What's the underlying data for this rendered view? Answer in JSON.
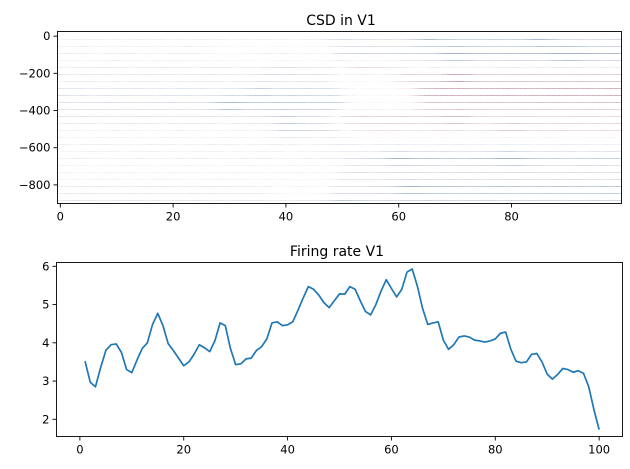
{
  "chart_data": [
    {
      "type": "heatmap",
      "title": "CSD in V1",
      "xlabel": "",
      "ylabel": "",
      "xlim": [
        -0.5,
        99.5
      ],
      "ylim": [
        -900,
        25
      ],
      "xticks": [
        0,
        20,
        40,
        60,
        80
      ],
      "yticks": [
        0,
        -200,
        -400,
        -600,
        -800
      ],
      "colormap": "RdBu_r",
      "colors": {
        "neg": "#08306b",
        "mid": "#f7f7f7",
        "pos": "#67001f"
      },
      "rows": 25,
      "cols": 100,
      "depth_step": -37.5,
      "bands": [
        {
          "depth": 0,
          "segments": [
            [
              0,
              50,
              -0.15
            ],
            [
              50,
              65,
              -0.3
            ],
            [
              65,
              85,
              -0.55
            ],
            [
              85,
              100,
              -0.4
            ]
          ]
        },
        {
          "depth": -75,
          "segments": [
            [
              0,
              30,
              -0.15
            ],
            [
              30,
              48,
              0.15
            ],
            [
              50,
              70,
              -0.55
            ],
            [
              70,
              90,
              -0.75
            ],
            [
              90,
              100,
              -0.85
            ]
          ]
        },
        {
          "depth": -150,
          "segments": [
            [
              0,
              40,
              -0.15
            ],
            [
              40,
              48,
              -0.2
            ],
            [
              52,
              62,
              0.35
            ],
            [
              62,
              100,
              -0.3
            ]
          ]
        },
        {
          "depth": -200,
          "segments": [
            [
              0,
              35,
              -0.2
            ],
            [
              38,
              46,
              -0.3
            ],
            [
              62,
              70,
              0.5
            ],
            [
              70,
              100,
              0.7
            ]
          ]
        },
        {
          "depth": -280,
          "segments": [
            [
              0,
              35,
              -0.3
            ],
            [
              36,
              48,
              -0.45
            ],
            [
              65,
              100,
              0.85
            ]
          ]
        },
        {
          "depth": -350,
          "segments": [
            [
              0,
              30,
              -0.35
            ],
            [
              30,
              48,
              -0.65
            ],
            [
              66,
              100,
              0.55
            ]
          ]
        },
        {
          "depth": -420,
          "segments": [
            [
              0,
              40,
              -0.25
            ],
            [
              40,
              48,
              -0.35
            ],
            [
              50,
              70,
              0.45
            ],
            [
              70,
              100,
              0.3
            ]
          ]
        },
        {
          "depth": -480,
          "segments": [
            [
              0,
              40,
              -0.1
            ],
            [
              40,
              48,
              -0.45
            ],
            [
              52,
              80,
              0.25
            ],
            [
              80,
              100,
              0.35
            ]
          ]
        },
        {
          "depth": -560,
          "segments": [
            [
              0,
              50,
              -0.15
            ],
            [
              52,
              100,
              -0.15
            ]
          ]
        },
        {
          "depth": -640,
          "segments": [
            [
              0,
              48,
              -0.15
            ],
            [
              52,
              60,
              -0.4
            ],
            [
              60,
              80,
              -0.7
            ],
            [
              80,
              100,
              -0.6
            ]
          ]
        },
        {
          "depth": -720,
          "segments": [
            [
              0,
              48,
              -0.1
            ],
            [
              52,
              100,
              -0.35
            ]
          ]
        },
        {
          "depth": -800,
          "segments": [
            [
              0,
              36,
              -0.25
            ],
            [
              36,
              46,
              0.1
            ],
            [
              50,
              62,
              -0.4
            ],
            [
              62,
              100,
              -0.75
            ]
          ]
        },
        {
          "depth": -870,
          "segments": [
            [
              0,
              50,
              -0.25
            ],
            [
              50,
              100,
              -0.45
            ]
          ]
        }
      ]
    },
    {
      "type": "line",
      "title": "Firing rate V1",
      "xlabel": "",
      "ylabel": "",
      "xlim": [
        -4.5,
        104.5
      ],
      "ylim": [
        1.55,
        6.1
      ],
      "xticks": [
        0,
        20,
        40,
        60,
        80,
        100
      ],
      "yticks": [
        2,
        3,
        4,
        5,
        6
      ],
      "color": "#1f77b4",
      "x": [
        1,
        2,
        3,
        4,
        5,
        6,
        7,
        8,
        9,
        10,
        11,
        12,
        13,
        14,
        15,
        16,
        17,
        18,
        19,
        20,
        21,
        22,
        23,
        24,
        25,
        26,
        27,
        28,
        29,
        30,
        31,
        32,
        33,
        34,
        35,
        36,
        37,
        38,
        39,
        40,
        41,
        42,
        43,
        44,
        45,
        46,
        47,
        48,
        49,
        50,
        51,
        52,
        53,
        54,
        55,
        56,
        57,
        58,
        59,
        60,
        61,
        62,
        63,
        64,
        65,
        66,
        67,
        68,
        69,
        70,
        71,
        72,
        73,
        74,
        75,
        76,
        77,
        78,
        79,
        80,
        81,
        82,
        83,
        84,
        85,
        86,
        87,
        88,
        89,
        90,
        91,
        92,
        93,
        94,
        95,
        96,
        97,
        98,
        99,
        100
      ],
      "values": [
        3.52,
        2.97,
        2.85,
        3.35,
        3.8,
        3.95,
        3.97,
        3.75,
        3.3,
        3.22,
        3.55,
        3.85,
        4.0,
        4.48,
        4.77,
        4.45,
        3.98,
        3.8,
        3.6,
        3.4,
        3.5,
        3.7,
        3.95,
        3.87,
        3.77,
        4.05,
        4.52,
        4.45,
        3.85,
        3.43,
        3.45,
        3.58,
        3.6,
        3.8,
        3.9,
        4.1,
        4.52,
        4.55,
        4.45,
        4.47,
        4.55,
        4.85,
        5.17,
        5.47,
        5.4,
        5.25,
        5.05,
        4.92,
        5.1,
        5.28,
        5.27,
        5.47,
        5.4,
        5.1,
        4.82,
        4.73,
        5.0,
        5.35,
        5.65,
        5.42,
        5.2,
        5.4,
        5.85,
        5.93,
        5.48,
        4.9,
        4.48,
        4.52,
        4.55,
        4.07,
        3.83,
        3.95,
        4.15,
        4.18,
        4.15,
        4.07,
        4.05,
        4.02,
        4.05,
        4.1,
        4.25,
        4.28,
        3.83,
        3.52,
        3.48,
        3.5,
        3.7,
        3.72,
        3.5,
        3.18,
        3.05,
        3.17,
        3.33,
        3.3,
        3.23,
        3.27,
        3.2,
        2.85,
        2.25,
        1.73
      ]
    }
  ]
}
